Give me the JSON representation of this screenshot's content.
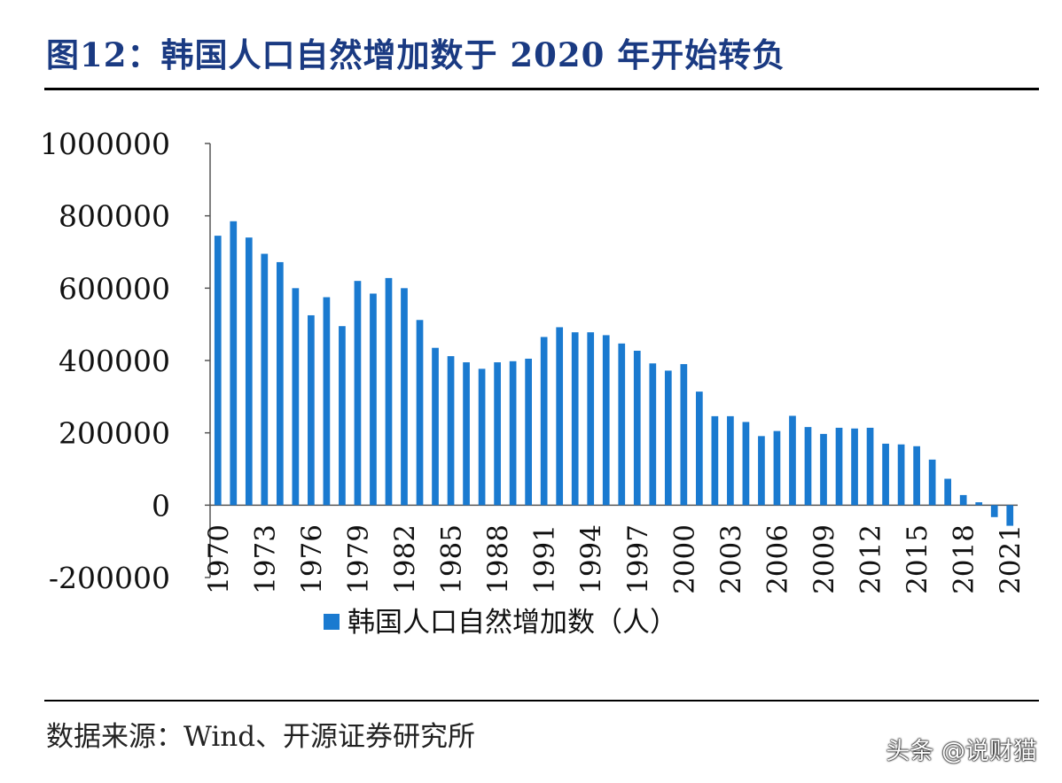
{
  "figure": {
    "title": "图12：韩国人口自然增加数于 2020 年开始转负",
    "source": "数据来源：Wind、开源证券研究所",
    "watermark": "头条 @说财猫"
  },
  "chart_data": {
    "type": "bar",
    "x": [
      1970,
      1971,
      1972,
      1973,
      1974,
      1975,
      1976,
      1977,
      1978,
      1979,
      1980,
      1981,
      1982,
      1983,
      1984,
      1985,
      1986,
      1987,
      1988,
      1989,
      1990,
      1991,
      1992,
      1993,
      1994,
      1995,
      1996,
      1997,
      1998,
      1999,
      2000,
      2001,
      2002,
      2003,
      2004,
      2005,
      2006,
      2007,
      2008,
      2009,
      2010,
      2011,
      2012,
      2013,
      2014,
      2015,
      2016,
      2017,
      2018,
      2019,
      2020,
      2021
    ],
    "x_tick_labels": [
      "1970",
      "1973",
      "1976",
      "1979",
      "1982",
      "1985",
      "1988",
      "1991",
      "1994",
      "1997",
      "2000",
      "2003",
      "2006",
      "2009",
      "2012",
      "2015",
      "2018",
      "2021"
    ],
    "series": [
      {
        "name": "韩国人口自然增加数（人）",
        "color": "#1a7ad0",
        "values": [
          745000,
          785000,
          740000,
          695000,
          672000,
          600000,
          525000,
          575000,
          495000,
          620000,
          585000,
          628000,
          600000,
          512000,
          435000,
          412000,
          395000,
          377000,
          395000,
          398000,
          405000,
          465000,
          492000,
          478000,
          478000,
          470000,
          447000,
          427000,
          392000,
          372000,
          390000,
          314000,
          246000,
          246000,
          230000,
          191000,
          205000,
          247000,
          216000,
          197000,
          214000,
          212000,
          214000,
          170000,
          168000,
          163000,
          126000,
          73000,
          28000,
          8000,
          -33000,
          -57000
        ]
      }
    ],
    "y_tick_labels": [
      "1000000",
      "800000",
      "600000",
      "400000",
      "200000",
      "0",
      "-200000"
    ],
    "ylim": [
      -200000,
      1000000
    ],
    "legend_position": "bottom",
    "grid": false
  }
}
